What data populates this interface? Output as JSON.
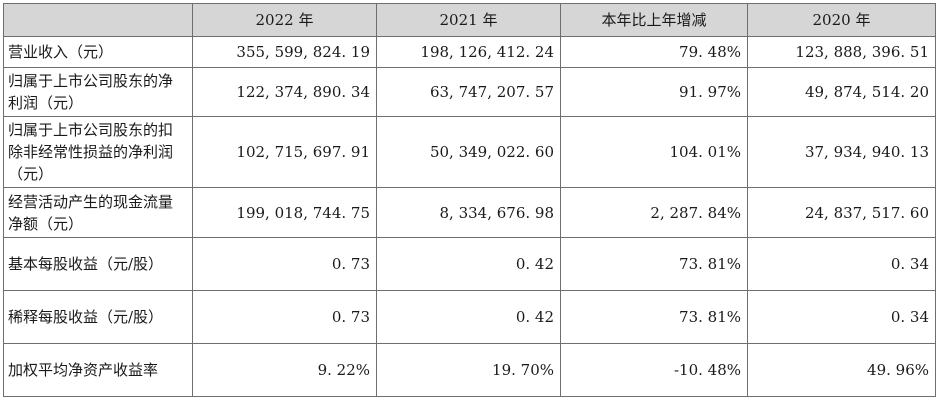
{
  "table": {
    "headers": [
      "",
      "2022 年",
      "2021 年",
      "本年比上年增减",
      "2020 年"
    ],
    "rows": [
      {
        "label": "营业收入（元）",
        "values": [
          "355, 599, 824. 19",
          "198, 126, 412. 24",
          "79. 48%",
          "123, 888, 396. 51"
        ]
      },
      {
        "label": "归属于上市公司股东的净利润（元）",
        "values": [
          "122, 374, 890. 34",
          "63, 747, 207. 57",
          "91. 97%",
          "49, 874, 514. 20"
        ]
      },
      {
        "label": "归属于上市公司股东的扣除非经常性损益的净利润（元）",
        "values": [
          "102, 715, 697. 91",
          "50, 349, 022. 60",
          "104. 01%",
          "37, 934, 940. 13"
        ]
      },
      {
        "label": "经营活动产生的现金流量净额（元）",
        "values": [
          "199, 018, 744. 75",
          "8, 334, 676. 98",
          "2, 287. 84%",
          "24, 837, 517. 60"
        ]
      },
      {
        "label": "基本每股收益（元/股）",
        "values": [
          "0. 73",
          "0. 42",
          "73. 81%",
          "0. 34"
        ]
      },
      {
        "label": "稀释每股收益（元/股）",
        "values": [
          "0. 73",
          "0. 42",
          "73. 81%",
          "0. 34"
        ]
      },
      {
        "label": "加权平均净资产收益率",
        "values": [
          "9. 22%",
          "19. 70%",
          "-10. 48%",
          "49. 96%"
        ]
      }
    ]
  }
}
